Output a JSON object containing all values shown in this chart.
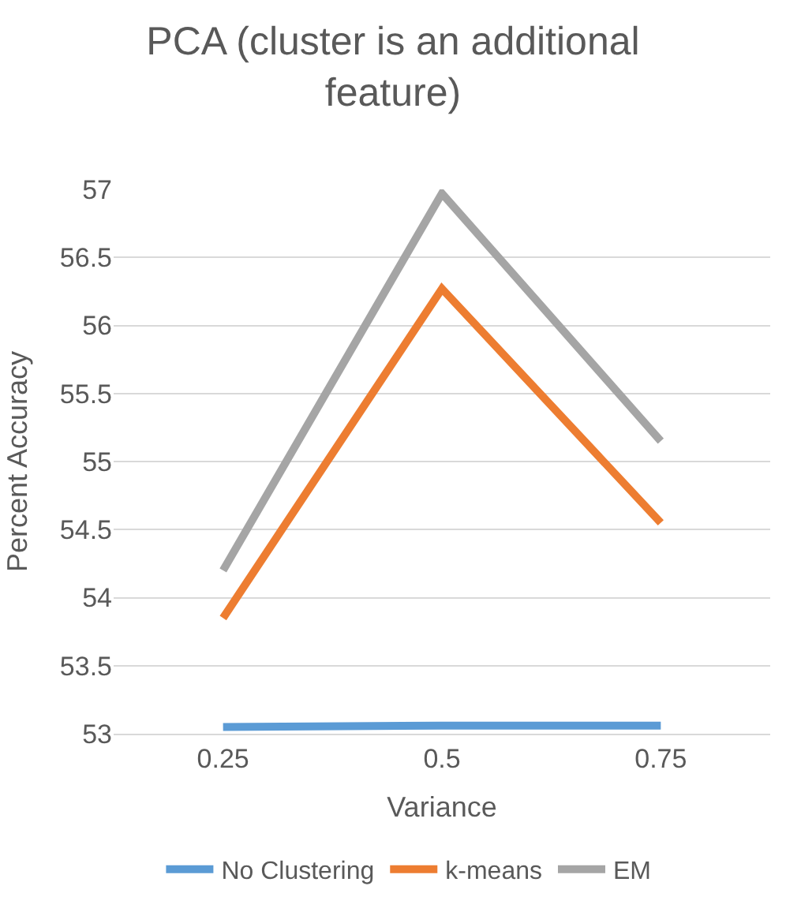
{
  "chart_data": {
    "type": "line",
    "title": "PCA (cluster is an additional feature)",
    "xlabel": "Variance",
    "ylabel": "Percent Accuracy",
    "categories": [
      "0.25",
      "0.5",
      "0.75"
    ],
    "series": [
      {
        "name": "No Clustering",
        "color": "#5b9bd5",
        "values": [
          53.05,
          53.06,
          53.06
        ]
      },
      {
        "name": "k-means",
        "color": "#ed7d31",
        "values": [
          53.85,
          56.27,
          54.55
        ]
      },
      {
        "name": "EM",
        "color": "#a5a5a5",
        "values": [
          54.2,
          56.97,
          55.15
        ]
      }
    ],
    "ylim": [
      53,
      57
    ],
    "yticks": [
      53,
      53.5,
      54,
      54.5,
      55,
      55.5,
      56,
      56.5,
      57
    ],
    "grid": "y",
    "legend": "bottom",
    "marker": "none",
    "line_style": "solid"
  }
}
